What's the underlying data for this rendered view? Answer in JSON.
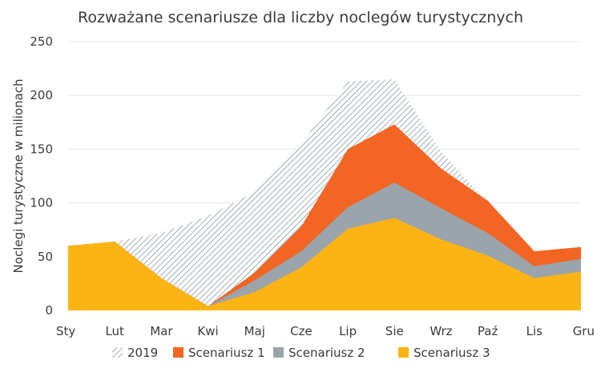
{
  "chart_data": {
    "type": "area",
    "title": "Rozważane scenariusze dla liczby noclegów turystycznych",
    "xlabel": "",
    "ylabel": "Noclegi turystyczne w milionach",
    "ylim": [
      0,
      250
    ],
    "yticks": [
      0,
      50,
      100,
      150,
      200,
      250
    ],
    "grid": true,
    "legend_position": "bottom",
    "categories": [
      "Sty",
      "Lut",
      "Mar",
      "Kwi",
      "Maj",
      "Cze",
      "Lip",
      "Sie",
      "Wrz",
      "Paź",
      "Lis",
      "Gru"
    ],
    "series": [
      {
        "name": "2019",
        "color": "#7a8a96",
        "pattern": "hatch",
        "values": [
          60,
          64,
          72,
          88,
          110,
          155,
          213,
          215,
          148,
          100,
          53,
          58
        ]
      },
      {
        "name": "Scenariusz 1",
        "color": "#f26522",
        "values": [
          60,
          64,
          30,
          4,
          35,
          78,
          150,
          173,
          132,
          102,
          55,
          59
        ]
      },
      {
        "name": "Scenariusz 2",
        "color": "#9aa4aa",
        "values": [
          60,
          64,
          30,
          4,
          28,
          55,
          96,
          119,
          95,
          72,
          41,
          48
        ]
      },
      {
        "name": "Scenariusz 3",
        "color": "#fcb414",
        "values": [
          60,
          64,
          30,
          4,
          17,
          40,
          76,
          86,
          66,
          51,
          30,
          36
        ]
      }
    ]
  }
}
